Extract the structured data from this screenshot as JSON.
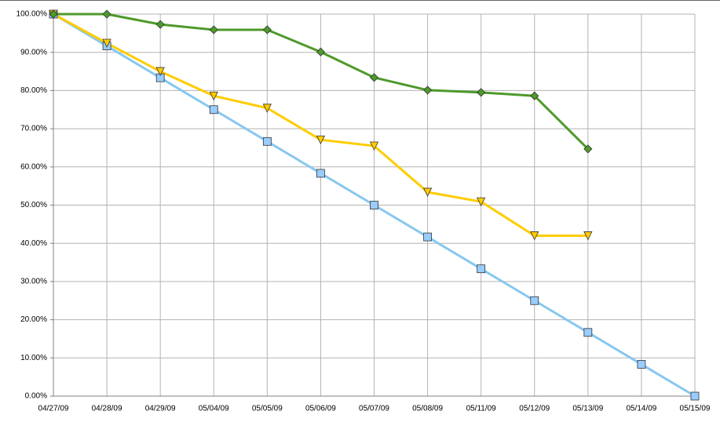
{
  "chart_data": {
    "type": "line",
    "categories": [
      "04/27/09",
      "04/28/09",
      "04/29/09",
      "05/04/09",
      "05/05/09",
      "05/06/09",
      "05/07/09",
      "05/08/09",
      "05/11/09",
      "05/12/09",
      "05/13/09",
      "05/14/09",
      "05/15/09"
    ],
    "series": [
      {
        "color": "#87c8f0",
        "marker": "square",
        "marker_fill": "#99ccff",
        "values": [
          100,
          91.67,
          83.33,
          75,
          66.67,
          58.33,
          50,
          41.67,
          33.33,
          25,
          16.67,
          8.33,
          0
        ]
      },
      {
        "color": "#ffcc00",
        "marker": "triangle-down",
        "marker_fill": "#ffcc00",
        "values": [
          100,
          92.4,
          85.0,
          78.6,
          75.4,
          67.1,
          65.5,
          53.4,
          50.9,
          42.0,
          42.0,
          null,
          null
        ]
      },
      {
        "color": "#4e9a2a",
        "marker": "diamond",
        "marker_fill": "#4e9a2a",
        "values": [
          100,
          100,
          97.3,
          95.9,
          95.9,
          90.1,
          83.4,
          80.1,
          79.5,
          78.6,
          64.7,
          null,
          null
        ]
      }
    ],
    "ylim": [
      0,
      100
    ],
    "yticks": [
      {
        "value": 0,
        "label": "0.00%"
      },
      {
        "value": 10,
        "label": "10.00%"
      },
      {
        "value": 20,
        "label": "20.00%"
      },
      {
        "value": 30,
        "label": "30.00%"
      },
      {
        "value": 40,
        "label": "40.00%"
      },
      {
        "value": 50,
        "label": "50.00%"
      },
      {
        "value": 60,
        "label": "60.00%"
      },
      {
        "value": 70,
        "label": "70.00%"
      },
      {
        "value": 80,
        "label": "80.00%"
      },
      {
        "value": 90,
        "label": "90.00%"
      },
      {
        "value": 100,
        "label": "100.00%"
      }
    ],
    "grid": true
  }
}
